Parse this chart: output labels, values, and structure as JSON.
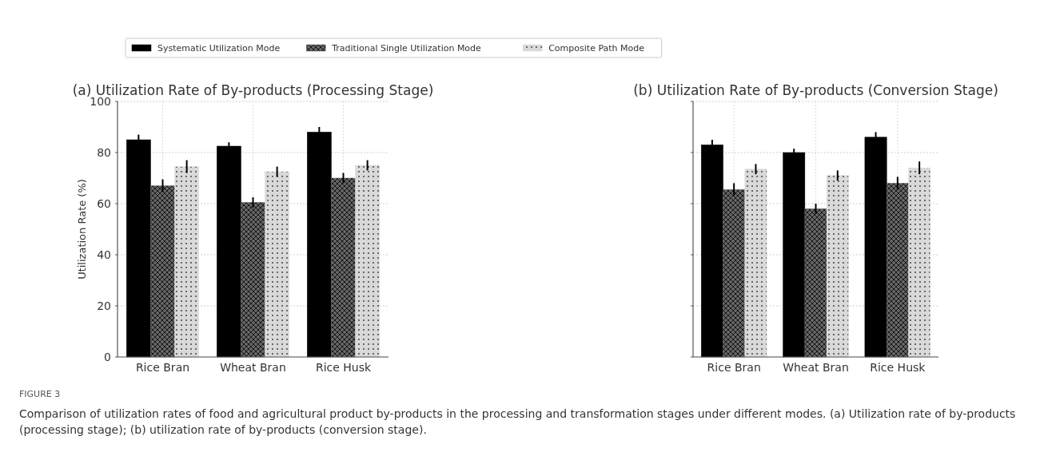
{
  "chart_data": [
    {
      "type": "bar",
      "title": "(a) Utilization Rate of By-products (Processing Stage)",
      "ylabel": "Utilization Rate (%)",
      "categories": [
        "Rice Bran",
        "Wheat Bran",
        "Rice Husk"
      ],
      "series": [
        {
          "name": "Systematic Utilization Mode",
          "color": "#000000",
          "values": [
            85,
            82.5,
            88
          ],
          "errors": [
            2,
            1.5,
            2
          ]
        },
        {
          "name": "Traditional Single Utilization Mode",
          "color": "#666666",
          "values": [
            67,
            60.5,
            70
          ],
          "errors": [
            2.5,
            2,
            2
          ]
        },
        {
          "name": "Composite Path Mode",
          "color": "#d9d9d9",
          "values": [
            74.5,
            72.5,
            75
          ],
          "errors": [
            2.5,
            2,
            2
          ]
        }
      ],
      "ylim": [
        0,
        100
      ],
      "yticks": [
        0,
        20,
        40,
        60,
        80,
        100
      ],
      "grid": true,
      "legend": "top",
      "annotations": [
        "FIGURE 3",
        "Comparison of utilization rates of food and agricultural product by-products in the processing and transformation stages under different modes. (a) Utilization rate of by-products (processing stage); (b) utilization rate of by-products (conversion stage)."
      ]
    },
    {
      "type": "bar",
      "title": "(b) Utilization Rate of By-products (Conversion Stage)",
      "categories": [
        "Rice Bran",
        "Wheat Bran",
        "Rice Husk"
      ],
      "series": [
        {
          "color": "#000000",
          "values": [
            83,
            80,
            86
          ],
          "errors": [
            2,
            1.5,
            2
          ]
        },
        {
          "color": "#666666",
          "values": [
            65.5,
            58,
            68
          ],
          "errors": [
            2.5,
            2,
            2.5
          ]
        },
        {
          "color": "#d9d9d9",
          "values": [
            73.5,
            71,
            74
          ],
          "errors": [
            2,
            2,
            2.5
          ]
        }
      ],
      "ylim": [
        0,
        100
      ],
      "yticks": [
        0,
        20,
        40,
        60,
        80,
        100
      ],
      "grid": true,
      "tick_labels": "x"
    }
  ]
}
